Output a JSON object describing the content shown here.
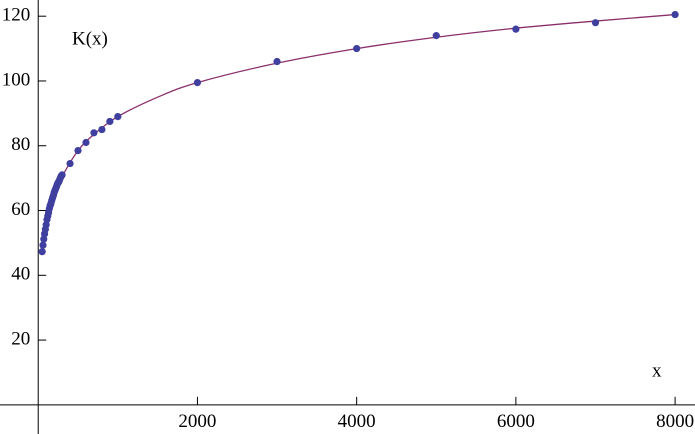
{
  "chart_data": {
    "type": "scatter",
    "xlabel": "x",
    "ylabel": "K(x)",
    "xlim": [
      -480,
      8250
    ],
    "ylim": [
      -9,
      125
    ],
    "xticks": [
      2000,
      4000,
      6000,
      8000
    ],
    "yticks": [
      20,
      40,
      60,
      80,
      100,
      120
    ],
    "points": {
      "color": "#3f3f9f",
      "x": [
        50,
        60,
        70,
        80,
        90,
        100,
        110,
        120,
        130,
        140,
        150,
        160,
        170,
        180,
        190,
        200,
        210,
        220,
        230,
        240,
        250,
        260,
        270,
        280,
        290,
        300,
        400,
        500,
        600,
        700,
        800,
        900,
        1000,
        2000,
        3000,
        4000,
        5000,
        6000,
        7000,
        8000
      ],
      "values": [
        47.3,
        49.3,
        51.2,
        52.8,
        54.2,
        55.6,
        57.2,
        58.3,
        59.3,
        60.6,
        61.5,
        62.2,
        63.1,
        63.9,
        64.6,
        65.5,
        66.2,
        66.8,
        67.4,
        68.1,
        68.6,
        68.9,
        69.6,
        70.2,
        70.7,
        71.0,
        74.5,
        78.5,
        81,
        84,
        85,
        87.5,
        89,
        99.5,
        106,
        110,
        114,
        116,
        118,
        120.5
      ]
    },
    "fit": {
      "color": "#8b2f6b",
      "x": [
        50,
        100,
        200,
        300,
        500,
        700,
        1000,
        1500,
        2000,
        3000,
        4000,
        5000,
        6000,
        7000,
        8000
      ],
      "values": [
        48,
        56,
        65,
        70.5,
        78.5,
        83.5,
        89,
        95,
        99.5,
        105.5,
        110,
        113.5,
        116.3,
        118.5,
        120.5
      ]
    }
  }
}
